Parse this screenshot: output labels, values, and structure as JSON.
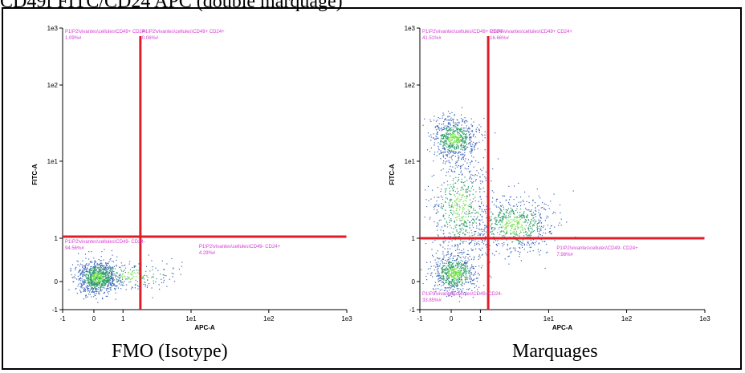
{
  "header": {
    "title": "CD49f FITC/CD24 APC (double marquage)"
  },
  "colors": {
    "gate": "#e01e2a",
    "annotation": "#d43bd4",
    "density_low": "#3a64b8",
    "density_mid": "#2e9b6a",
    "density_high": "#6fe04a"
  },
  "chart_data": [
    {
      "type": "scatter",
      "caption": "FMO (Isotype)",
      "xlabel": "APC-A",
      "ylabel": "FITC-A",
      "x_scale": "biexponential",
      "y_scale": "biexponential",
      "xlim": [
        -1,
        1000
      ],
      "ylim": [
        -1,
        1000
      ],
      "xticks": [
        "-1",
        "0",
        "1",
        "1e1",
        "1e2",
        "1e3"
      ],
      "yticks": [
        "-1",
        "0",
        "1",
        "1e1",
        "1e2",
        "1e3"
      ],
      "gate": {
        "x": 1.8,
        "y": 1.05
      },
      "quadrants": [
        {
          "label": "P1\\P2\\vivantes\\cellules\\CD49+ CD24-",
          "value": "1.09%#"
        },
        {
          "label": "P1\\P2\\vivantes\\cellules\\CD49+ CD24+",
          "value": "0.06%#"
        },
        {
          "label": "P1\\P2\\vivantes\\cellules\\CD49- CD24-",
          "value": "94.56%#"
        },
        {
          "label": "P1\\P2\\vivantes\\cellules\\CD49- CD24+",
          "value": "4.29%#"
        }
      ],
      "populations": [
        {
          "x": 0.1,
          "y": 0.1,
          "spread_x": 0.35,
          "spread_y": 0.3,
          "count": 900
        },
        {
          "x": 1.2,
          "y": 0.15,
          "spread_x": 0.9,
          "spread_y": 0.25,
          "count": 250
        }
      ]
    },
    {
      "type": "scatter",
      "caption": "Marquages",
      "xlabel": "APC-A",
      "ylabel": "FITC-A",
      "x_scale": "biexponential",
      "y_scale": "biexponential",
      "xlim": [
        -1,
        1000
      ],
      "ylim": [
        -1,
        1000
      ],
      "xticks": [
        "-1",
        "0",
        "1",
        "1e1",
        "1e2",
        "1e3"
      ],
      "yticks": [
        "-1",
        "0",
        "1",
        "1e1",
        "1e2",
        "1e3"
      ],
      "gate": {
        "x": 1.3,
        "y": 1.0
      },
      "quadrants": [
        {
          "label": "P1\\P2\\vivantes\\cellules\\CD49+ CD24-",
          "value": "41.51%#"
        },
        {
          "label": "P1\\P2\\vivantes\\cellules\\CD49+ CD24+",
          "value": "16.66%#"
        },
        {
          "label": "P1\\P2\\vivantes\\cellules\\CD49- CD24-",
          "value": "33.85%#"
        },
        {
          "label": "P1\\P2\\vivantes\\cellules\\CD49- CD24+",
          "value": "7.98%#"
        }
      ],
      "populations": [
        {
          "x": 0.1,
          "y": 20,
          "spread_x": 0.4,
          "spread_y": 0.35,
          "count": 700
        },
        {
          "x": 0.1,
          "y": 0.2,
          "spread_x": 0.4,
          "spread_y": 0.35,
          "count": 700
        },
        {
          "x": 0.3,
          "y": 2.5,
          "spread_x": 0.5,
          "spread_y": 0.9,
          "count": 600
        },
        {
          "x": 3,
          "y": 1.5,
          "spread_x": 0.7,
          "spread_y": 0.5,
          "count": 700
        }
      ]
    }
  ]
}
